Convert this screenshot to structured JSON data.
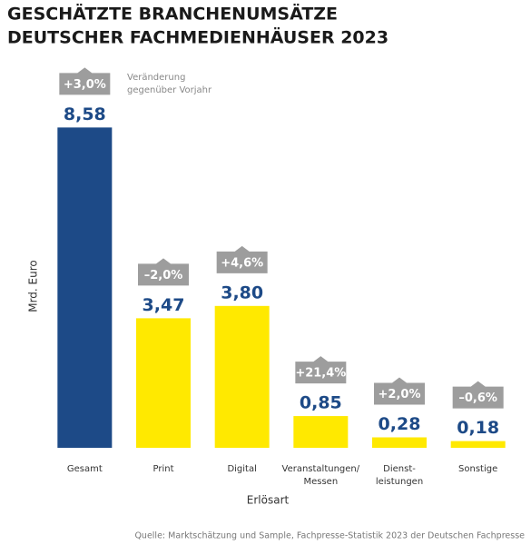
{
  "chart_data": {
    "type": "bar",
    "title": [
      "GESCHÄTZTE BRANCHENUMSÄTZE",
      "DEUTSCHER FACHMEDIENHÄUSER 2023"
    ],
    "categories": [
      "Gesamt",
      "Print",
      "Digital",
      "Veranstaltungen/\nMessen",
      "Dienst-\nleistungen",
      "Sonstige"
    ],
    "values": [
      8.58,
      3.47,
      3.8,
      0.85,
      0.28,
      0.18
    ],
    "value_labels": [
      "8,58",
      "3,47",
      "3,80",
      "0,85",
      "0,28",
      "0,18"
    ],
    "change_labels": [
      "+3,0%",
      "–2,0%",
      "+4,6%",
      "+21,4%",
      "+2,0%",
      "–0,6%"
    ],
    "colors": [
      "#1d4a87",
      "#ffe900",
      "#ffe900",
      "#ffe900",
      "#ffe900",
      "#ffe900"
    ],
    "ylim": [
      0,
      10
    ],
    "ylabel": "Mrd. Euro",
    "xlabel": "Erlösart",
    "annotation": [
      "Veränderung",
      "gegenüber Vorjahr"
    ],
    "source": "Quelle: Marktschätzung und Sample, Fachpresse-Statistik 2023 der Deutschen Fachpresse"
  }
}
